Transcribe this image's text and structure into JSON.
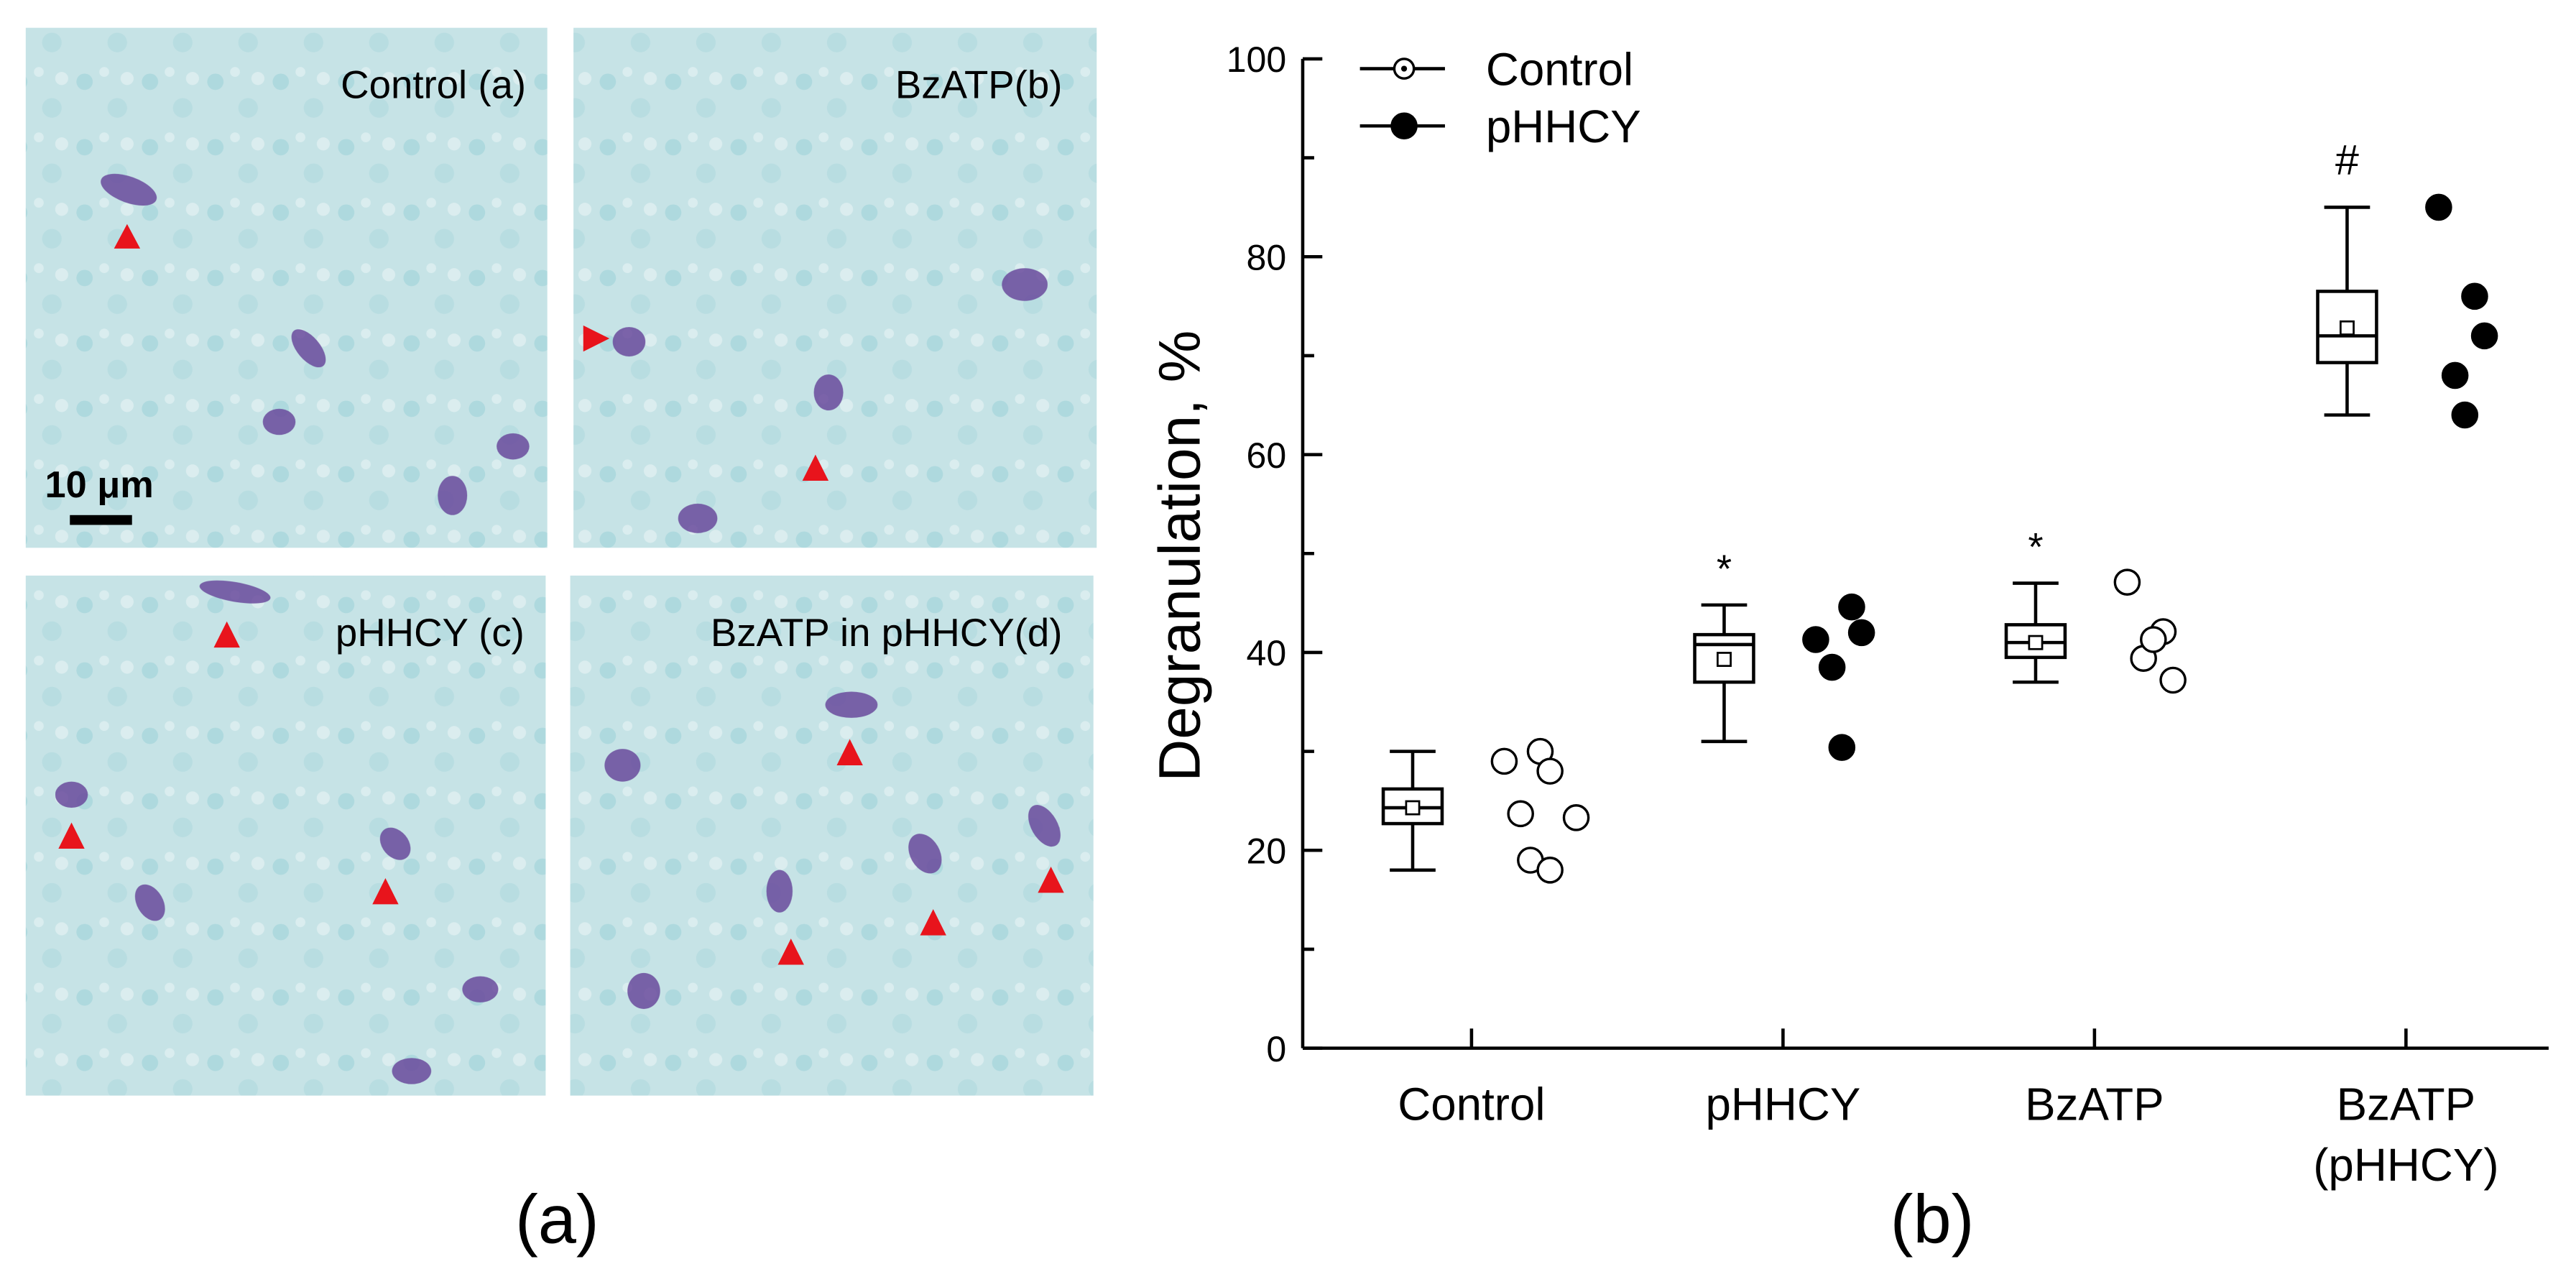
{
  "panels": [
    {
      "label": "Control (a)"
    },
    {
      "label": "BzATP(b)"
    },
    {
      "label": "pHHCY (c)"
    },
    {
      "label": "BzATP in pHHCY(d)"
    }
  ],
  "scale_bar": "10 μm",
  "panel_captions": [
    "(a)",
    "(b)"
  ],
  "chart_data": {
    "type": "box",
    "y_label": "Degranulation, %",
    "categories": [
      "Control",
      "pHHCY",
      "BzATP",
      "BzATP (pHHCY)"
    ],
    "ylim": [
      0,
      100
    ],
    "yticks": [
      0,
      20,
      40,
      60,
      80,
      100
    ],
    "color": "#000000",
    "boxes": [
      {
        "whisker_low": 18,
        "q1": 22.7,
        "median": 24.3,
        "q3": 26.2,
        "whisker_high": 30,
        "mean": 24.3
      },
      {
        "whisker_low": 31,
        "q1": 37,
        "median": 40.8,
        "q3": 41.8,
        "whisker_high": 44.8,
        "mean": 39.3
      },
      {
        "whisker_low": 37,
        "q1": 39.5,
        "median": 41,
        "q3": 42.8,
        "whisker_high": 47,
        "mean": 41
      },
      {
        "whisker_low": 64,
        "q1": 69.3,
        "median": 72,
        "q3": 76.5,
        "whisker_high": 85,
        "mean": 72.8
      }
    ],
    "series": [
      {
        "name": "Control",
        "marker": "open",
        "color": "#000000",
        "points": [
          [
            29,
            30,
            28,
            23.7,
            19,
            18,
            23.3
          ],
          null,
          [
            47.1,
            42.1,
            37.2,
            39.4,
            41.3
          ],
          null
        ]
      },
      {
        "name": "pHHCY",
        "marker": "filled",
        "color": "#000000",
        "points": [
          null,
          [
            41.3,
            44.6,
            42,
            38.5,
            30.4
          ],
          null,
          [
            85,
            76,
            72,
            68,
            64
          ]
        ]
      }
    ],
    "annotations": [
      {
        "text": "*",
        "category": "pHHCY"
      },
      {
        "text": "*",
        "category": "BzATP"
      },
      {
        "text": "#",
        "category": "BzATP (pHHCY)"
      }
    ],
    "legend": "top-left"
  }
}
